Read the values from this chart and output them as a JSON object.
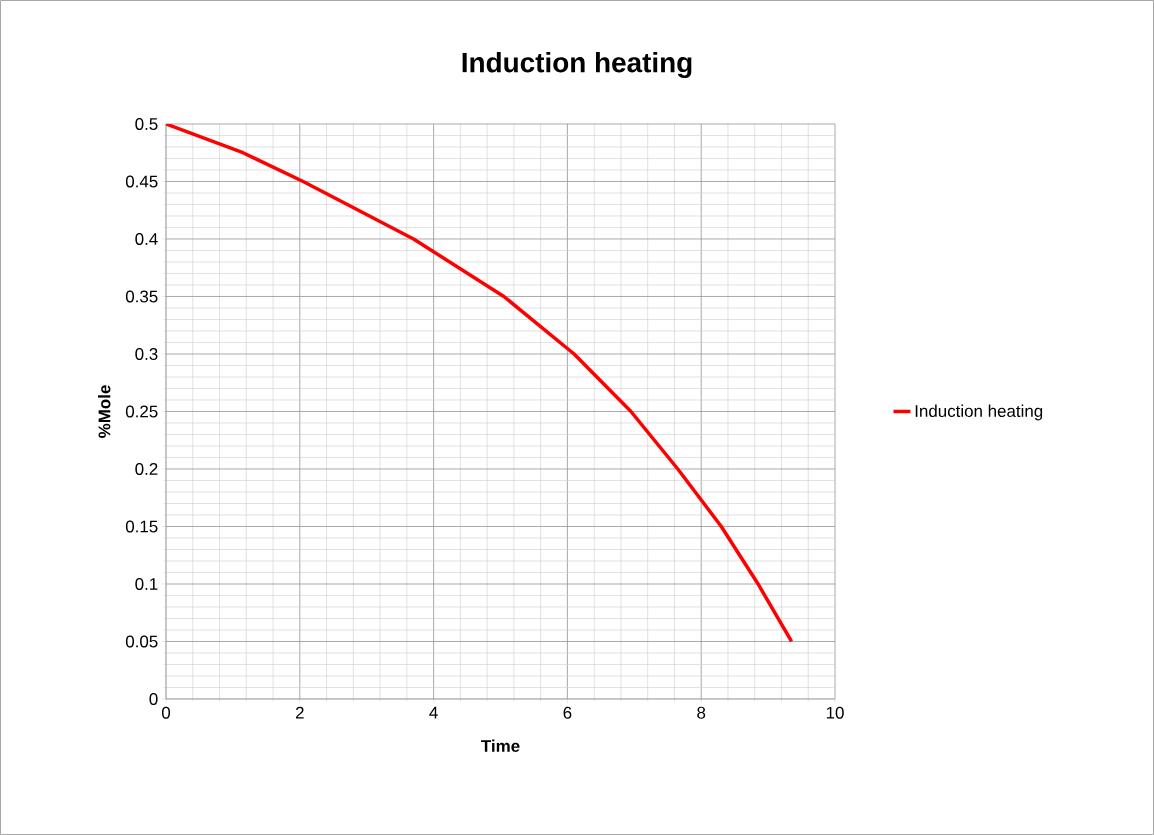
{
  "chart_data": {
    "type": "line",
    "title": "Induction heating",
    "xlabel": "Time",
    "ylabel": "%Mole",
    "series": [
      {
        "name": "Induction heating",
        "color": "#ff0000",
        "x": [
          0,
          1.15,
          2.05,
          3.7,
          5.05,
          6.1,
          6.95,
          7.65,
          8.3,
          8.85,
          9.35
        ],
        "values": [
          0.5,
          0.475,
          0.45,
          0.4,
          0.35,
          0.3,
          0.25,
          0.2,
          0.15,
          0.1,
          0.05
        ]
      }
    ],
    "xlim": [
      0,
      10
    ],
    "ylim": [
      0,
      0.5
    ],
    "xticks": [
      0,
      2,
      4,
      6,
      8,
      10
    ],
    "yticks": [
      0,
      0.05,
      0.1,
      0.15,
      0.2,
      0.25,
      0.3,
      0.35,
      0.4,
      0.45,
      0.5
    ],
    "grid": true,
    "legend": "right",
    "marker": "none",
    "line_style": "solid"
  }
}
